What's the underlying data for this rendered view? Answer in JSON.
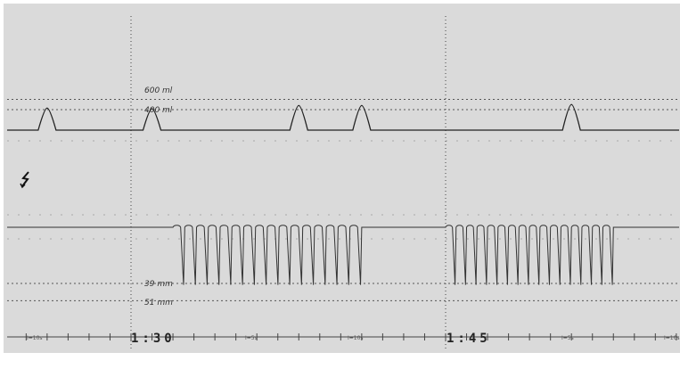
{
  "chart_data": {
    "type": "line",
    "x_unit": "min:s",
    "xlim": [
      "1:21",
      "1:56"
    ],
    "time_markers": [
      "1:30",
      "1:45"
    ],
    "tick_labels": [
      "I=10s",
      "I=5s",
      "I=10s",
      "I=5s",
      "I=10s"
    ],
    "series": [
      {
        "reference_lines": [
          {
            "label": "600 ml",
            "value": 600
          },
          {
            "label": "400 ml",
            "value": 400
          }
        ],
        "peaks": [
          {
            "time": "1:26",
            "value": 430
          },
          {
            "time": "1:31",
            "value": 420
          },
          {
            "time": "1:38",
            "value": 480
          },
          {
            "time": "1:41",
            "value": 480
          },
          {
            "time": "1:51",
            "value": 500
          }
        ]
      },
      {
        "reference_lines": [
          {
            "label": "39 mm",
            "value": 39
          },
          {
            "label": "51 mm",
            "value": 51
          }
        ],
        "pulse_trains": [
          {
            "start": "1:32",
            "end": "1:41",
            "pulses": 16,
            "depth_mm": 40
          },
          {
            "start": "1:45",
            "end": "1:53",
            "pulses": 16,
            "depth_mm": 40
          }
        ]
      }
    ]
  },
  "annotations": {
    "event_marker_icon": "lightning-bolt-icon"
  },
  "colors": {
    "background": "#dadada",
    "trace": "#222222"
  }
}
